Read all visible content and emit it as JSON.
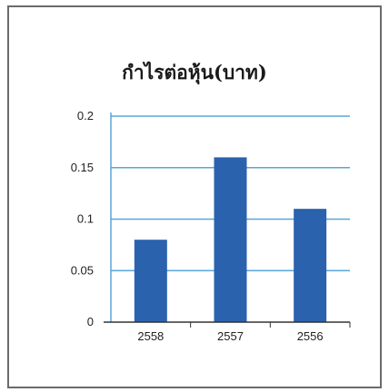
{
  "chart_data": {
    "type": "bar",
    "title": "กำไรต่อหุ้น(บาท)",
    "categories": [
      "2558",
      "2557",
      "2556"
    ],
    "values": [
      0.08,
      0.16,
      0.11
    ],
    "ylim": [
      0,
      0.2
    ],
    "yticks": [
      "0",
      "0.05",
      "0.1",
      "0.15",
      "0.2"
    ],
    "grid": true,
    "legend": "none",
    "colors": {
      "bar": "#2b62ad",
      "grid": "#5aa5d8",
      "axis": "#333333"
    }
  }
}
